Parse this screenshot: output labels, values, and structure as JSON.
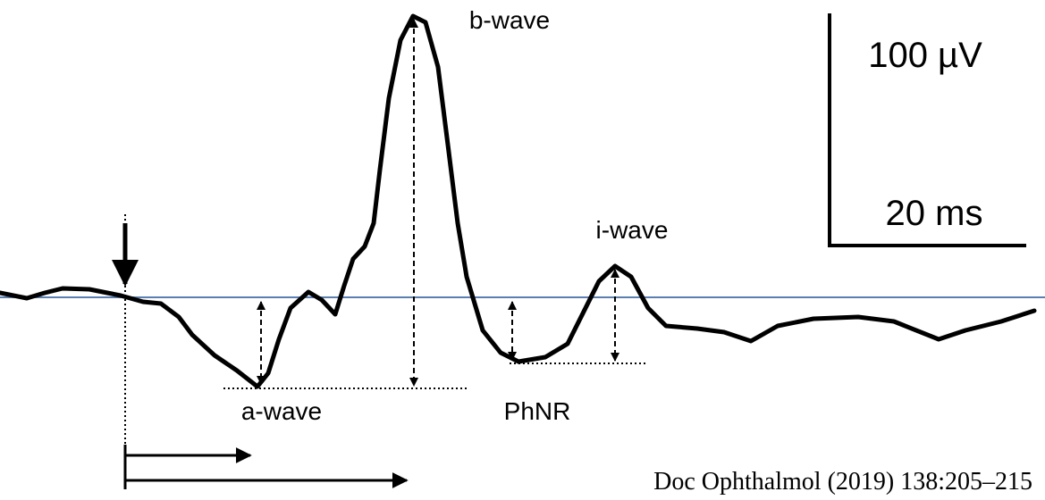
{
  "waves": {
    "b_wave": "b-wave",
    "i_wave": "i-wave",
    "a_wave": "a-wave",
    "phnr": "PhNR"
  },
  "scale_bar": {
    "amplitude": "100 µV",
    "time": "20 ms"
  },
  "citation": "Doc Ophthalmol (2019) 138:205–215"
}
